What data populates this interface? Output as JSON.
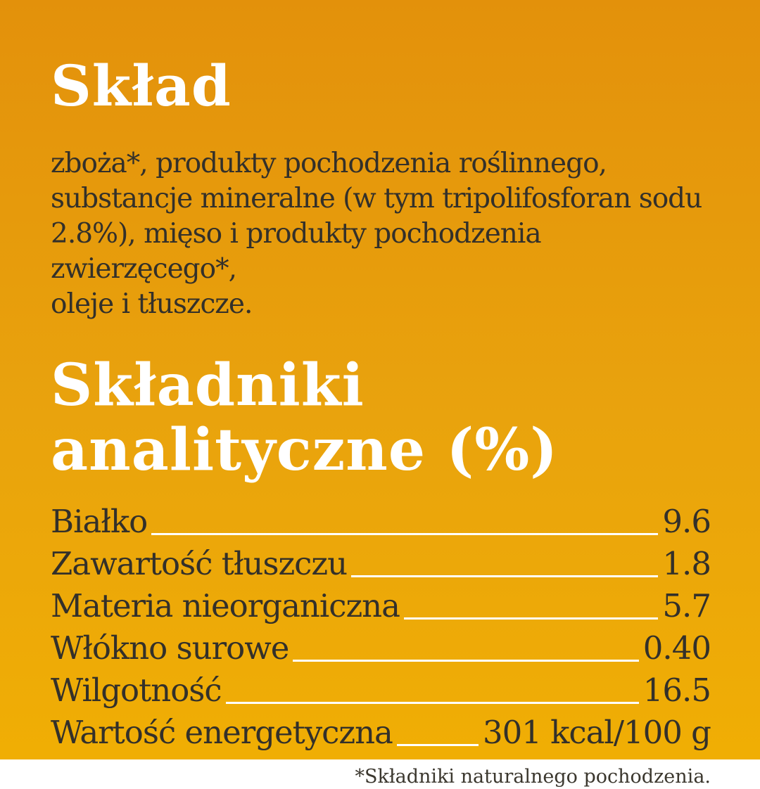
{
  "page": {
    "background_top_color": "#E3910B",
    "background_bottom_color": "#F0AE04",
    "heading_color": "#FFFFFF",
    "text_color": "#33302A",
    "leader_line_color": "#FFFFFF"
  },
  "composition": {
    "title": "Skład",
    "body_lines": [
      "zboża*, produkty pochodzenia roślinnego,",
      "substancje mineralne (w tym tripolifosforan sodu",
      "2.8%), mięso i produkty pochodzenia zwierzęcego*,",
      "oleje i tłuszcze."
    ]
  },
  "analytical": {
    "title_line1": "Składniki",
    "title_line2": "analityczne (%)",
    "rows": [
      {
        "label": "Białko",
        "value": "9.6"
      },
      {
        "label": "Zawartość tłuszczu",
        "value": "1.8"
      },
      {
        "label": "Materia nieorganiczna",
        "value": "5.7"
      },
      {
        "label": "Włókno surowe",
        "value": "0.40"
      },
      {
        "label": "Wilgotność",
        "value": "16.5"
      },
      {
        "label": "Wartość energetyczna",
        "value": "301 kcal/100 g"
      }
    ]
  },
  "footnote": "*Składniki naturalnego pochodzenia."
}
